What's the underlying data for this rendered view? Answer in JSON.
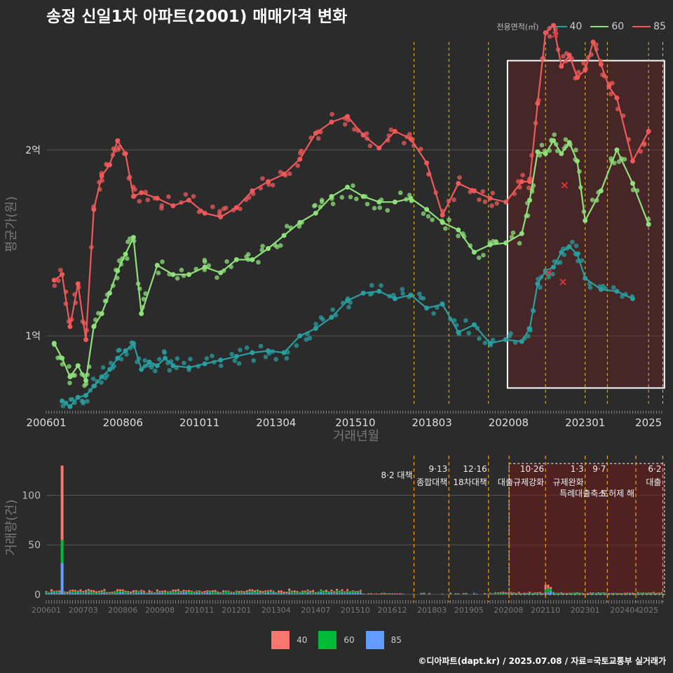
{
  "title": "송정 신일1차 아파트(2001) 매매가격 변화",
  "legend": {
    "title": "전용면적(㎡)",
    "items": [
      {
        "label": "40",
        "color": "#2a9d9f"
      },
      {
        "label": "60",
        "color": "#8ee07a"
      },
      {
        "label": "85",
        "color": "#f0595a"
      }
    ]
  },
  "bottom_legend": {
    "items": [
      {
        "label": "40",
        "color": "#f8766d"
      },
      {
        "label": "60",
        "color": "#00ba38"
      },
      {
        "label": "85",
        "color": "#619cff"
      }
    ]
  },
  "footer": "©디아파트(dapt.kr) / 2025.07.08 / 자료=국토교통부 실거래가",
  "chart_data": [
    {
      "type": "line",
      "xlabel": "거래년월",
      "ylabel": "평균가(원)",
      "x_tick_labels": [
        "200601",
        "200806",
        "201011",
        "201304",
        "201510",
        "201803",
        "202008",
        "202301",
        "2025"
      ],
      "y_tick_labels": [
        "1억",
        "2억"
      ],
      "y_ticks": [
        10000,
        20000
      ],
      "ylim": [
        6200,
        25800
      ],
      "xlim": [
        2006.0,
        2025.55
      ],
      "grid": true,
      "highlight_box": {
        "x": [
          2020.55,
          2025.5
        ],
        "y": [
          7200,
          24800
        ]
      },
      "event_lines": [
        {
          "date": 2017.6,
          "color": "#e6c229"
        },
        {
          "date": 2018.7,
          "color": "#e6c229"
        },
        {
          "date": 2019.95,
          "color": "#e6c229"
        },
        {
          "date": 2021.75,
          "color": "#e6c229"
        },
        {
          "date": 2023.0,
          "color": "#e6c229"
        },
        {
          "date": 2023.7,
          "color": "#e6c229"
        },
        {
          "date": 2025.0,
          "color": "#e6c229"
        },
        {
          "date": 2025.45,
          "color": "#e6c229"
        }
      ],
      "series": [
        {
          "name": "40",
          "color": "#2a9d9f",
          "x": [
            2006.5,
            2006.75,
            2007.0,
            2007.25,
            2007.5,
            2007.75,
            2008.0,
            2008.25,
            2008.5,
            2008.75,
            2009.0,
            2009.25,
            2009.5,
            2009.75,
            2010.0,
            2010.5,
            2011.0,
            2011.5,
            2012.0,
            2012.5,
            2013.0,
            2013.5,
            2014.0,
            2014.5,
            2015.0,
            2015.5,
            2016.0,
            2016.5,
            2017.0,
            2017.5,
            2018.0,
            2018.5,
            2019.0,
            2019.5,
            2020.0,
            2020.5,
            2021.0,
            2021.25,
            2021.5,
            2021.75,
            2022.0,
            2022.25,
            2022.5,
            2022.75,
            2023.0,
            2023.5,
            2024.0,
            2024.5
          ],
          "values": [
            6500,
            6200,
            6700,
            6800,
            7300,
            7800,
            8200,
            8800,
            9200,
            9600,
            8200,
            8600,
            8400,
            8800,
            8400,
            8300,
            8500,
            8700,
            8900,
            9100,
            9200,
            9100,
            10000,
            10400,
            11000,
            11900,
            12300,
            12400,
            12000,
            12200,
            11500,
            11700,
            10200,
            10600,
            9600,
            9800,
            9700,
            10400,
            12800,
            13500,
            13700,
            14500,
            14800,
            14400,
            13100,
            12500,
            12400,
            12000
          ]
        },
        {
          "name": "60",
          "color": "#8ee07a",
          "x": [
            2006.25,
            2006.5,
            2006.75,
            2007.0,
            2007.25,
            2007.5,
            2007.75,
            2008.0,
            2008.25,
            2008.5,
            2008.75,
            2009.0,
            2009.5,
            2010.0,
            2010.5,
            2011.0,
            2011.5,
            2012.0,
            2012.5,
            2013.0,
            2013.5,
            2014.0,
            2014.5,
            2015.0,
            2015.5,
            2016.0,
            2016.5,
            2017.0,
            2017.5,
            2018.0,
            2018.5,
            2019.0,
            2019.5,
            2020.0,
            2020.5,
            2021.0,
            2021.25,
            2021.5,
            2021.75,
            2022.0,
            2022.25,
            2022.5,
            2022.75,
            2023.0,
            2023.5,
            2024.0,
            2024.5,
            2025.0
          ],
          "values": [
            9600,
            8800,
            7800,
            8400,
            7600,
            10500,
            11200,
            12300,
            13500,
            14400,
            15300,
            11200,
            13800,
            13300,
            13300,
            13700,
            13400,
            14100,
            14100,
            14700,
            15400,
            16100,
            16600,
            17500,
            18000,
            17500,
            17200,
            17200,
            17400,
            16800,
            16100,
            15700,
            14500,
            14900,
            15000,
            15500,
            17300,
            19900,
            19800,
            20500,
            19800,
            20400,
            19400,
            16200,
            17800,
            20000,
            18200,
            16000
          ]
        },
        {
          "name": "85",
          "color": "#f0595a",
          "x": [
            2006.25,
            2006.5,
            2006.75,
            2007.0,
            2007.25,
            2007.5,
            2007.75,
            2008.0,
            2008.25,
            2008.5,
            2008.75,
            2009.0,
            2009.5,
            2010.0,
            2010.5,
            2011.0,
            2011.5,
            2012.0,
            2012.5,
            2013.0,
            2013.5,
            2014.0,
            2014.5,
            2015.0,
            2015.5,
            2016.0,
            2016.5,
            2017.0,
            2017.5,
            2018.0,
            2018.5,
            2019.0,
            2019.5,
            2020.0,
            2020.5,
            2021.0,
            2021.25,
            2021.5,
            2021.75,
            2022.0,
            2022.25,
            2022.5,
            2022.75,
            2023.0,
            2023.25,
            2023.5,
            2023.75,
            2024.0,
            2024.5,
            2025.0
          ],
          "values": [
            13000,
            13300,
            10500,
            12800,
            9800,
            16800,
            18600,
            19200,
            20500,
            19800,
            17500,
            17700,
            17400,
            17000,
            17300,
            16600,
            16400,
            16900,
            17800,
            18300,
            18700,
            19500,
            20900,
            21500,
            21800,
            20800,
            20100,
            21000,
            20600,
            19300,
            16500,
            18200,
            17800,
            17400,
            17200,
            18300,
            18300,
            22500,
            26300,
            26700,
            24500,
            25100,
            23900,
            24300,
            25800,
            24600,
            23400,
            22800,
            19400,
            21000
          ]
        }
      ],
      "markers_x": [
        {
          "x": 2021.85,
          "y": 13400,
          "color": "#e8333a"
        },
        {
          "x": 2022.05,
          "y": 26200,
          "color": "#e8333a"
        },
        {
          "x": 2022.3,
          "y": 12900,
          "color": "#e8333a"
        },
        {
          "x": 2022.35,
          "y": 18100,
          "color": "#e8333a"
        }
      ]
    },
    {
      "type": "bar",
      "xlabel": "",
      "ylabel": "거래량(건)",
      "x_tick_labels": [
        "200601",
        "200703",
        "200806",
        "200908",
        "201011",
        "201201",
        "201304",
        "201407",
        "201510",
        "201612",
        "201803",
        "201905",
        "202008",
        "202110",
        "202301",
        "202404",
        "2025"
      ],
      "y_tick_labels": [
        "0",
        "50",
        "100"
      ],
      "y_ticks": [
        0,
        50,
        100
      ],
      "ylim": [
        -5,
        140
      ],
      "xlim": [
        2006.0,
        2025.55
      ],
      "grid": true,
      "highlight_box": {
        "x": [
          2020.6,
          2025.5
        ],
        "y": [
          0,
          132
        ]
      },
      "stacked": true,
      "series": [
        {
          "name": "40",
          "color": "#f8766d"
        },
        {
          "name": "60",
          "color": "#00ba38"
        },
        {
          "name": "85",
          "color": "#619cff"
        }
      ],
      "spike": {
        "x": 2006.5,
        "values": [
          75,
          23,
          32
        ]
      },
      "baseline_levels": {
        "2006-2016": 4,
        "2016-2020": 1.5,
        "2020-2021.7": 2,
        "2021.7-2021.9": 10,
        "2022-2025.5": 2
      },
      "events": [
        {
          "date": 2017.6,
          "label": "8·2 대책",
          "label2": ""
        },
        {
          "date": 2018.7,
          "label": "9·13",
          "label2": "종합대책"
        },
        {
          "date": 2019.95,
          "label": "12·16",
          "label2": "18차대책"
        },
        {
          "date": 2020.6,
          "label": "",
          "label2": ""
        },
        {
          "date": 2021.75,
          "label": "10·26",
          "label2": "대출규제강화"
        },
        {
          "date": 2023.0,
          "label": "1·3",
          "label2": "규제완화"
        },
        {
          "date": 2023.7,
          "label": "9·7",
          "label2": "특례대출축소"
        },
        {
          "date": 2024.6,
          "label": "",
          "label2": "토허제 해"
        },
        {
          "date": 2025.45,
          "label": "6·2",
          "label2": "대출"
        }
      ]
    }
  ]
}
